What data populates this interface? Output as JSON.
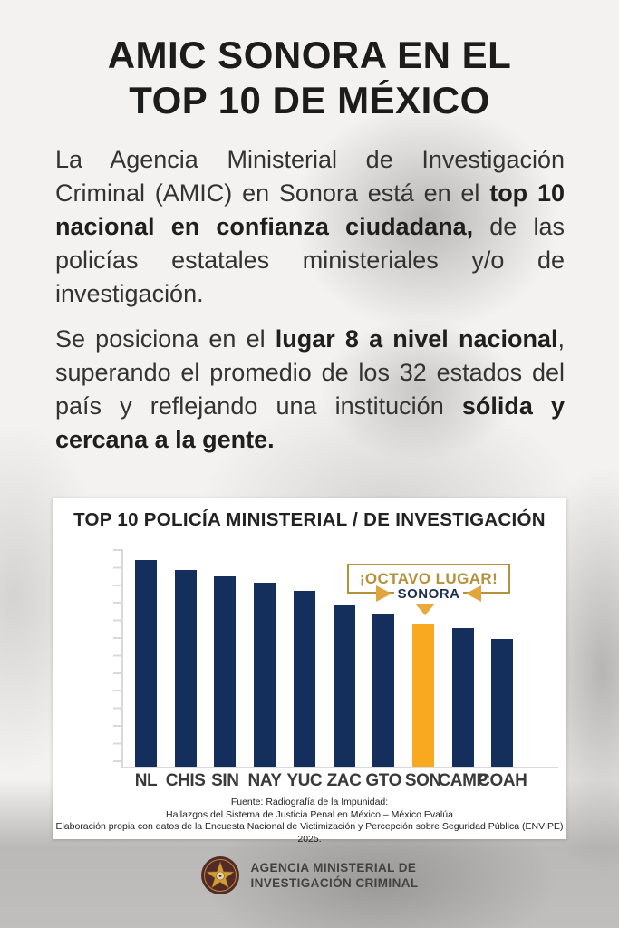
{
  "header": {
    "title_line1": "AMIC SONORA EN EL",
    "title_line2": "TOP 10 DE MÉXICO"
  },
  "intro": {
    "p1_normal1": "La Agencia Ministerial de Investigación Criminal (AMIC) en Sonora está en el ",
    "p1_bold1": "top 10 nacional en confianza ciudadana,",
    "p1_normal2": " de las policías estatales ministeriales y/o de investigación.",
    "p2_normal1": "Se posiciona en el ",
    "p2_bold1": "lugar 8 a nivel nacional",
    "p2_normal2": ", superando el promedio de los 32 estados del país y reflejando una institución ",
    "p2_bold2": "sólida y cercana a la gente."
  },
  "chart_card": {
    "title": "TOP 10 POLICÍA MINISTERIAL / DE INVESTIGACIÓN",
    "annotation": {
      "headline": "¡OCTAVO LUGAR!",
      "state_label": "SONORA"
    },
    "source_line1": "Fuente: Radiografía de la Impunidad:",
    "source_line2": "Hallazgos del Sistema de Justicia Penal en México – México Evalúa",
    "source_line3": "Elaboración propia con datos de la Encuesta Nacional de Victimización y Percepción sobre Seguridad Pública (ENVIPE) 2025."
  },
  "chart_data": {
    "type": "bar",
    "title": "TOP 10 POLICÍA MINISTERIAL / DE INVESTIGACIÓN",
    "categories": [
      "NL",
      "CHIS",
      "SIN",
      "NAY",
      "YUC",
      "ZAC",
      "GTO",
      "SON",
      "CAMP",
      "COAH"
    ],
    "values": [
      100,
      95,
      92,
      89,
      85,
      78,
      74,
      69,
      67,
      62
    ],
    "values_unit": "relative bar height, max = 100 (y-axis has tick marks but no numeric labels)",
    "highlight_category": "SON",
    "annotation": "¡OCTAVO LUGAR! SONORA (points at SON bar, rank 8)",
    "bar_color": "#152f5c",
    "highlight_color": "#f8a91f",
    "ylim": [
      0,
      100
    ],
    "grid": false,
    "legend": "none",
    "xlabel": "",
    "ylabel": ""
  },
  "icons": {
    "arrow_right": "▶",
    "arrow_left": "◀",
    "arrow_down": "▼",
    "badge": "gold-star-circular-badge"
  },
  "colors": {
    "navy": "#152f5c",
    "amber": "#f8a91f",
    "gold": "#b5913c",
    "card_bg": "#ffffff",
    "page_bg": "#f3f2f0",
    "text_dark": "#1c1c1c"
  },
  "footer": {
    "org_line1": "AGENCIA MINISTERIAL DE",
    "org_line2": "INVESTIGACIÓN CRIMINAL"
  }
}
